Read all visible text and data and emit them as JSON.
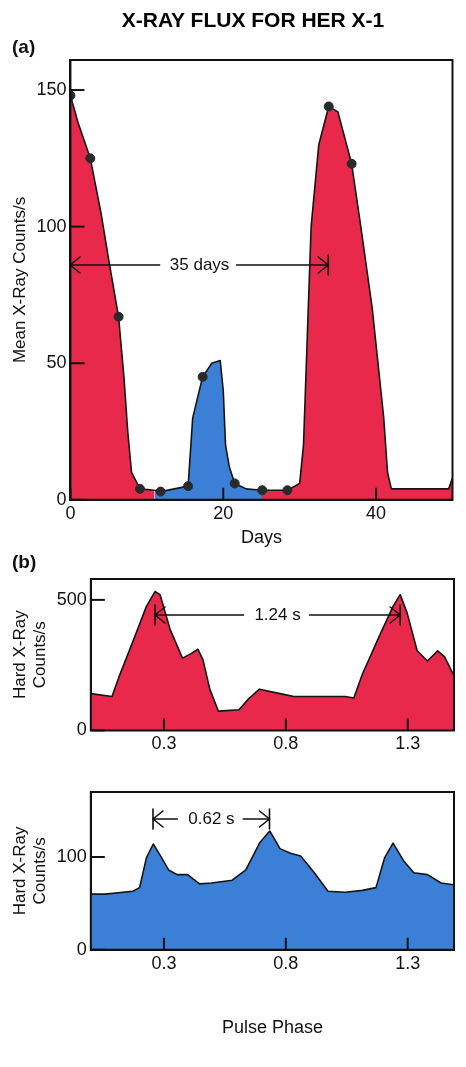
{
  "chart_data": [
    {
      "type": "area",
      "title": "X-RAY FLUX FOR HER X-1",
      "xlabel": "Days",
      "ylabel": "Mean X-Ray Counts/s",
      "annotations": [
        "(a)",
        {
          "text": "35 days",
          "x": 0,
          "y": 86
        }
      ],
      "xlim": [
        0,
        50
      ],
      "ylim": [
        0,
        161
      ],
      "xticks": [
        0,
        20,
        40
      ],
      "yticks": [
        0,
        50,
        100,
        150
      ],
      "grid": false,
      "legend": false,
      "series": [
        {
          "color": "#e8294b",
          "x": [
            0,
            1,
            2.6,
            4,
            5,
            6.3,
            7,
            7.5,
            8,
            9.1,
            11,
            18,
            25,
            28.4,
            30,
            30.5,
            31,
            31.5,
            32.5,
            33.8,
            35,
            36.8,
            38,
            39.5,
            41,
            41.5,
            42,
            45,
            49.5,
            50
          ],
          "values": [
            148,
            138,
            125,
            105,
            88,
            67,
            45,
            25,
            10,
            4,
            3.5,
            null,
            3.5,
            3.5,
            6,
            20,
            60,
            100,
            130,
            144,
            142,
            123,
            100,
            70,
            30,
            10,
            4,
            4,
            4,
            8
          ]
        },
        {
          "color": "#3b7fd6",
          "x": [
            11,
            11.8,
            15.4,
            16,
            17.3,
            18.5,
            19.6,
            20,
            20.3,
            20.8,
            21.5,
            23,
            25.1
          ],
          "values": [
            3.5,
            3,
            5,
            30,
            45,
            50,
            51,
            40,
            20,
            12,
            6,
            4,
            3.5
          ]
        },
        {
          "type": "scatter",
          "color": "#2a2a2a",
          "x": [
            0,
            2.6,
            6.3,
            9.1,
            11.8,
            15.4,
            17.3,
            21.5,
            25.1,
            28.4,
            33.8,
            36.8
          ],
          "values": [
            148,
            125,
            67,
            4,
            3,
            5,
            45,
            6,
            3.5,
            3.5,
            144,
            123
          ]
        }
      ]
    },
    {
      "type": "area",
      "ylabel": "Hard X-Ray Counts/s",
      "annotations": [
        "(b)",
        "1.24 s"
      ],
      "xlim": [
        0,
        1.49
      ],
      "ylim": [
        0,
        580
      ],
      "xticks": [
        0.3,
        0.8,
        1.3
      ],
      "yticks": [
        0,
        500
      ],
      "grid": false,
      "legend": false,
      "series": [
        {
          "color": "#e8294b",
          "x": [
            0,
            0.087,
            0.115,
            0.172,
            0.228,
            0.263,
            0.284,
            0.326,
            0.376,
            0.411,
            0.439,
            0.46,
            0.488,
            0.523,
            0.608,
            0.65,
            0.692,
            0.776,
            0.833,
            0.945,
            1.044,
            1.079,
            1.114,
            1.184,
            1.24,
            1.269,
            1.297,
            1.339,
            1.381,
            1.423,
            1.451,
            1.487
          ],
          "values": [
            141,
            130,
            204,
            339,
            475,
            532,
            520,
            385,
            277,
            294,
            311,
            271,
            158,
            74,
            79,
            124,
            158,
            141,
            130,
            130,
            130,
            124,
            215,
            362,
            475,
            520,
            452,
            305,
            266,
            305,
            283,
            215
          ]
        }
      ]
    },
    {
      "type": "area",
      "xlabel": "Pulse Phase",
      "ylabel": "Hard X-Ray Counts/s",
      "annotations": [
        "0.62 s"
      ],
      "xlim": [
        0,
        1.49
      ],
      "ylim": [
        0,
        170
      ],
      "xticks": [
        0.3,
        0.8,
        1.3
      ],
      "yticks": [
        0,
        100
      ],
      "grid": false,
      "legend": false,
      "series": [
        {
          "color": "#3b7fd6",
          "x": [
            0,
            0.059,
            0.172,
            0.2,
            0.228,
            0.256,
            0.284,
            0.319,
            0.354,
            0.397,
            0.446,
            0.495,
            0.58,
            0.636,
            0.692,
            0.734,
            0.776,
            0.819,
            0.861,
            0.917,
            0.973,
            1.044,
            1.114,
            1.17,
            1.205,
            1.24,
            1.283,
            1.325,
            1.381,
            1.437,
            1.487
          ],
          "values": [
            60,
            60,
            63,
            67,
            99,
            114,
            102,
            86,
            81,
            81,
            71,
            72,
            75,
            86,
            115,
            128,
            109,
            104,
            101,
            83,
            63,
            62,
            64,
            67,
            99,
            115,
            96,
            83,
            81,
            72,
            70
          ]
        }
      ]
    }
  ]
}
